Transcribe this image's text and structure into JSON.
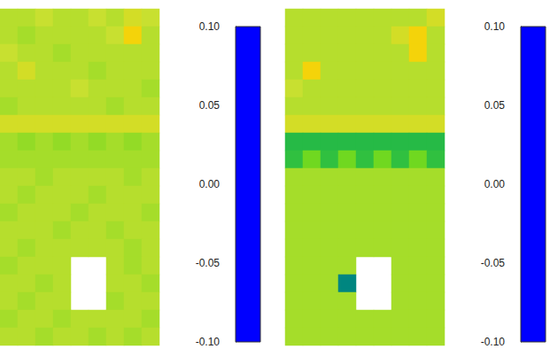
{
  "chart_data": [
    {
      "type": "heatmap",
      "cells": [
        [
          0.02,
          0.02,
          0.025,
          0.02,
          0.02,
          0.025,
          0.02,
          0.03,
          0.025
        ],
        [
          0.02,
          0.015,
          0.02,
          0.02,
          0.02,
          0.02,
          0.025,
          0.045,
          0.02
        ],
        [
          0.025,
          0.02,
          0.02,
          0.015,
          0.02,
          0.02,
          0.02,
          0.02,
          0.02
        ],
        [
          0.02,
          0.03,
          0.02,
          0.02,
          0.02,
          0.015,
          0.02,
          0.02,
          0.02
        ],
        [
          0.02,
          0.02,
          0.02,
          0.02,
          0.025,
          0.02,
          0.02,
          0.02,
          0.015
        ],
        [
          0.015,
          0.02,
          0.02,
          0.02,
          0.02,
          0.02,
          0.015,
          0.02,
          0.02
        ],
        [
          0.03,
          0.03,
          0.03,
          0.03,
          0.03,
          0.03,
          0.03,
          0.03,
          0.03
        ],
        [
          0.015,
          0.01,
          0.015,
          0.01,
          0.015,
          0.01,
          0.015,
          0.01,
          0.015
        ],
        [
          0.015,
          0.015,
          0.015,
          0.015,
          0.015,
          0.015,
          0.015,
          0.015,
          0.015
        ],
        [
          0.02,
          0.02,
          0.015,
          0.02,
          0.02,
          0.02,
          0.02,
          0.015,
          0.02
        ],
        [
          0.02,
          0.015,
          0.02,
          0.02,
          0.02,
          0.015,
          0.02,
          0.02,
          0.02
        ],
        [
          0.015,
          0.02,
          0.02,
          0.02,
          0.015,
          0.02,
          0.02,
          0.02,
          0.015
        ],
        [
          0.02,
          0.02,
          0.02,
          0.015,
          0.02,
          0.02,
          0.015,
          0.02,
          0.02
        ],
        [
          0.02,
          0.015,
          0.02,
          0.02,
          0.02,
          0.02,
          0.02,
          0.015,
          0.02
        ],
        [
          0.015,
          0.02,
          0.02,
          0.02,
          null,
          null,
          0.02,
          0.015,
          0.02
        ],
        [
          0.02,
          0.02,
          0.015,
          0.02,
          null,
          null,
          0.02,
          0.02,
          0.015
        ],
        [
          0.02,
          0.015,
          0.02,
          0.02,
          null,
          null,
          0.015,
          0.02,
          0.02
        ],
        [
          0.015,
          0.02,
          0.02,
          0.015,
          0.02,
          0.02,
          0.02,
          0.02,
          0.015
        ],
        [
          0.02,
          0.02,
          0.015,
          0.02,
          0.02,
          0.015,
          0.02,
          0.015,
          0.02
        ]
      ],
      "colorbar": {
        "range": [
          -0.1,
          0.1
        ],
        "ticks": [
          {
            "value": 0.1,
            "label": "0.10"
          },
          {
            "value": 0.05,
            "label": "0.05"
          },
          {
            "value": 0,
            "label": "0.00"
          },
          {
            "value": -0.05,
            "label": "-0.05"
          },
          {
            "value": -0.1,
            "label": "-0.10"
          }
        ]
      }
    },
    {
      "type": "heatmap",
      "cells": [
        [
          0.02,
          0.02,
          0.02,
          0.02,
          0.02,
          0.02,
          0.02,
          0.02,
          0.03
        ],
        [
          0.02,
          0.02,
          0.02,
          0.02,
          0.02,
          0.02,
          0.03,
          0.045,
          0.02
        ],
        [
          0.02,
          0.02,
          0.02,
          0.02,
          0.02,
          0.02,
          0.02,
          0.045,
          0.02
        ],
        [
          0.02,
          0.045,
          0.02,
          0.02,
          0.02,
          0.02,
          0.02,
          0.02,
          0.02
        ],
        [
          0.025,
          0.02,
          0.02,
          0.02,
          0.02,
          0.02,
          0.02,
          0.02,
          0.02
        ],
        [
          0.02,
          0.02,
          0.02,
          0.02,
          0.02,
          0.02,
          0.02,
          0.02,
          0.02
        ],
        [
          0.03,
          0.03,
          0.03,
          0.03,
          0.03,
          0.03,
          0.03,
          0.03,
          0.03
        ],
        [
          -0.03,
          -0.03,
          -0.03,
          -0.03,
          -0.03,
          -0.03,
          -0.03,
          -0.03,
          -0.03
        ],
        [
          -0.025,
          0.0,
          -0.025,
          0.0,
          -0.025,
          0.0,
          -0.025,
          0.0,
          -0.025
        ],
        [
          0.015,
          0.015,
          0.015,
          0.015,
          0.015,
          0.015,
          0.015,
          0.015,
          0.015
        ],
        [
          0.015,
          0.015,
          0.015,
          0.015,
          0.015,
          0.015,
          0.015,
          0.015,
          0.015
        ],
        [
          0.015,
          0.015,
          0.015,
          0.015,
          0.015,
          0.015,
          0.015,
          0.015,
          0.015
        ],
        [
          0.015,
          0.015,
          0.015,
          0.015,
          0.015,
          0.015,
          0.015,
          0.015,
          0.015
        ],
        [
          0.015,
          0.015,
          0.015,
          0.015,
          0.015,
          0.015,
          0.015,
          0.015,
          0.015
        ],
        [
          0.015,
          0.015,
          0.015,
          0.015,
          null,
          null,
          0.015,
          0.015,
          0.015
        ],
        [
          0.015,
          0.015,
          0.015,
          -0.06,
          null,
          null,
          0.015,
          0.015,
          0.015
        ],
        [
          0.015,
          0.015,
          0.015,
          0.015,
          null,
          null,
          0.015,
          0.015,
          0.015
        ],
        [
          0.015,
          0.015,
          0.015,
          0.015,
          0.015,
          0.015,
          0.015,
          0.015,
          0.015
        ],
        [
          0.015,
          0.015,
          0.015,
          0.015,
          0.015,
          0.015,
          0.015,
          0.015,
          0.015
        ]
      ],
      "colorbar": {
        "range": [
          -0.1,
          0.1
        ],
        "ticks": [
          {
            "value": 0.1,
            "label": "0.10"
          },
          {
            "value": 0.05,
            "label": "0.05"
          },
          {
            "value": 0,
            "label": "0.00"
          },
          {
            "value": -0.05,
            "label": "-0.05"
          },
          {
            "value": -0.1,
            "label": "-0.10"
          }
        ]
      }
    }
  ]
}
